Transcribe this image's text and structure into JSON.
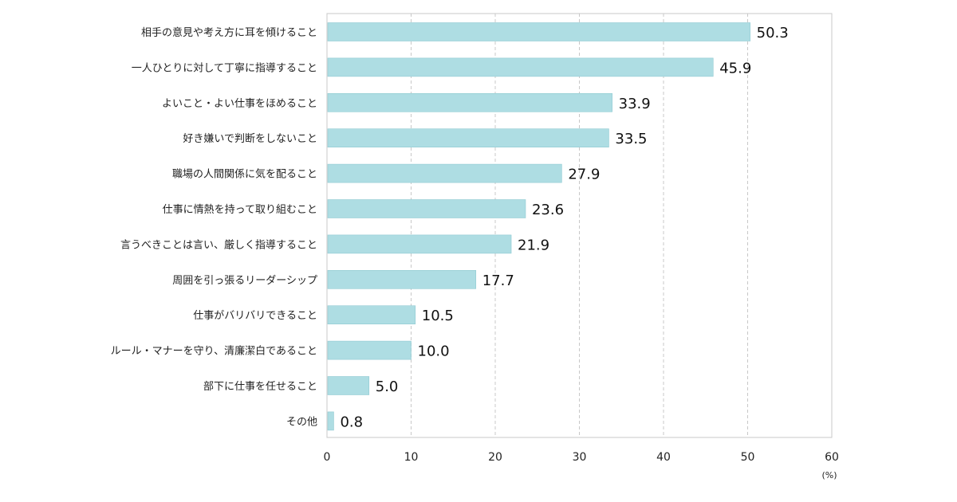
{
  "chart_data": {
    "type": "bar",
    "orientation": "horizontal",
    "categories": [
      "相手の意見や考え方に耳を傾けること",
      "一人ひとりに対して丁寧に指導すること",
      "よいこと・よい仕事をほめること",
      "好き嫌いで判断をしないこと",
      "職場の人間関係に気を配ること",
      "仕事に情熱を持って取り組むこと",
      "言うべきことは言い、厳しく指導すること",
      "周囲を引っ張るリーダーシップ",
      "仕事がバリバリできること",
      "ルール・マナーを守り、清廉潔白であること",
      "部下に仕事を任せること",
      "その他"
    ],
    "values": [
      50.3,
      45.9,
      33.9,
      33.5,
      27.9,
      23.6,
      21.9,
      17.7,
      10.5,
      10.0,
      5.0,
      0.8
    ],
    "value_labels": [
      "50.3",
      "45.9",
      "33.9",
      "33.5",
      "27.9",
      "23.6",
      "21.9",
      "17.7",
      "10.5",
      "10.0",
      "5.0",
      "0.8"
    ],
    "xlim": [
      0,
      60
    ],
    "x_ticks": [
      0,
      10,
      20,
      30,
      40,
      50,
      60
    ],
    "x_tick_labels": [
      "0",
      "10",
      "20",
      "30",
      "40",
      "50",
      "60"
    ],
    "unit": "(%)",
    "grid": "vertical dashed",
    "bar_color": "#aedde3",
    "bar_stroke": "#8fcad2",
    "grid_color": "#c8c8c8",
    "frame_color": "#c8c8c8"
  }
}
